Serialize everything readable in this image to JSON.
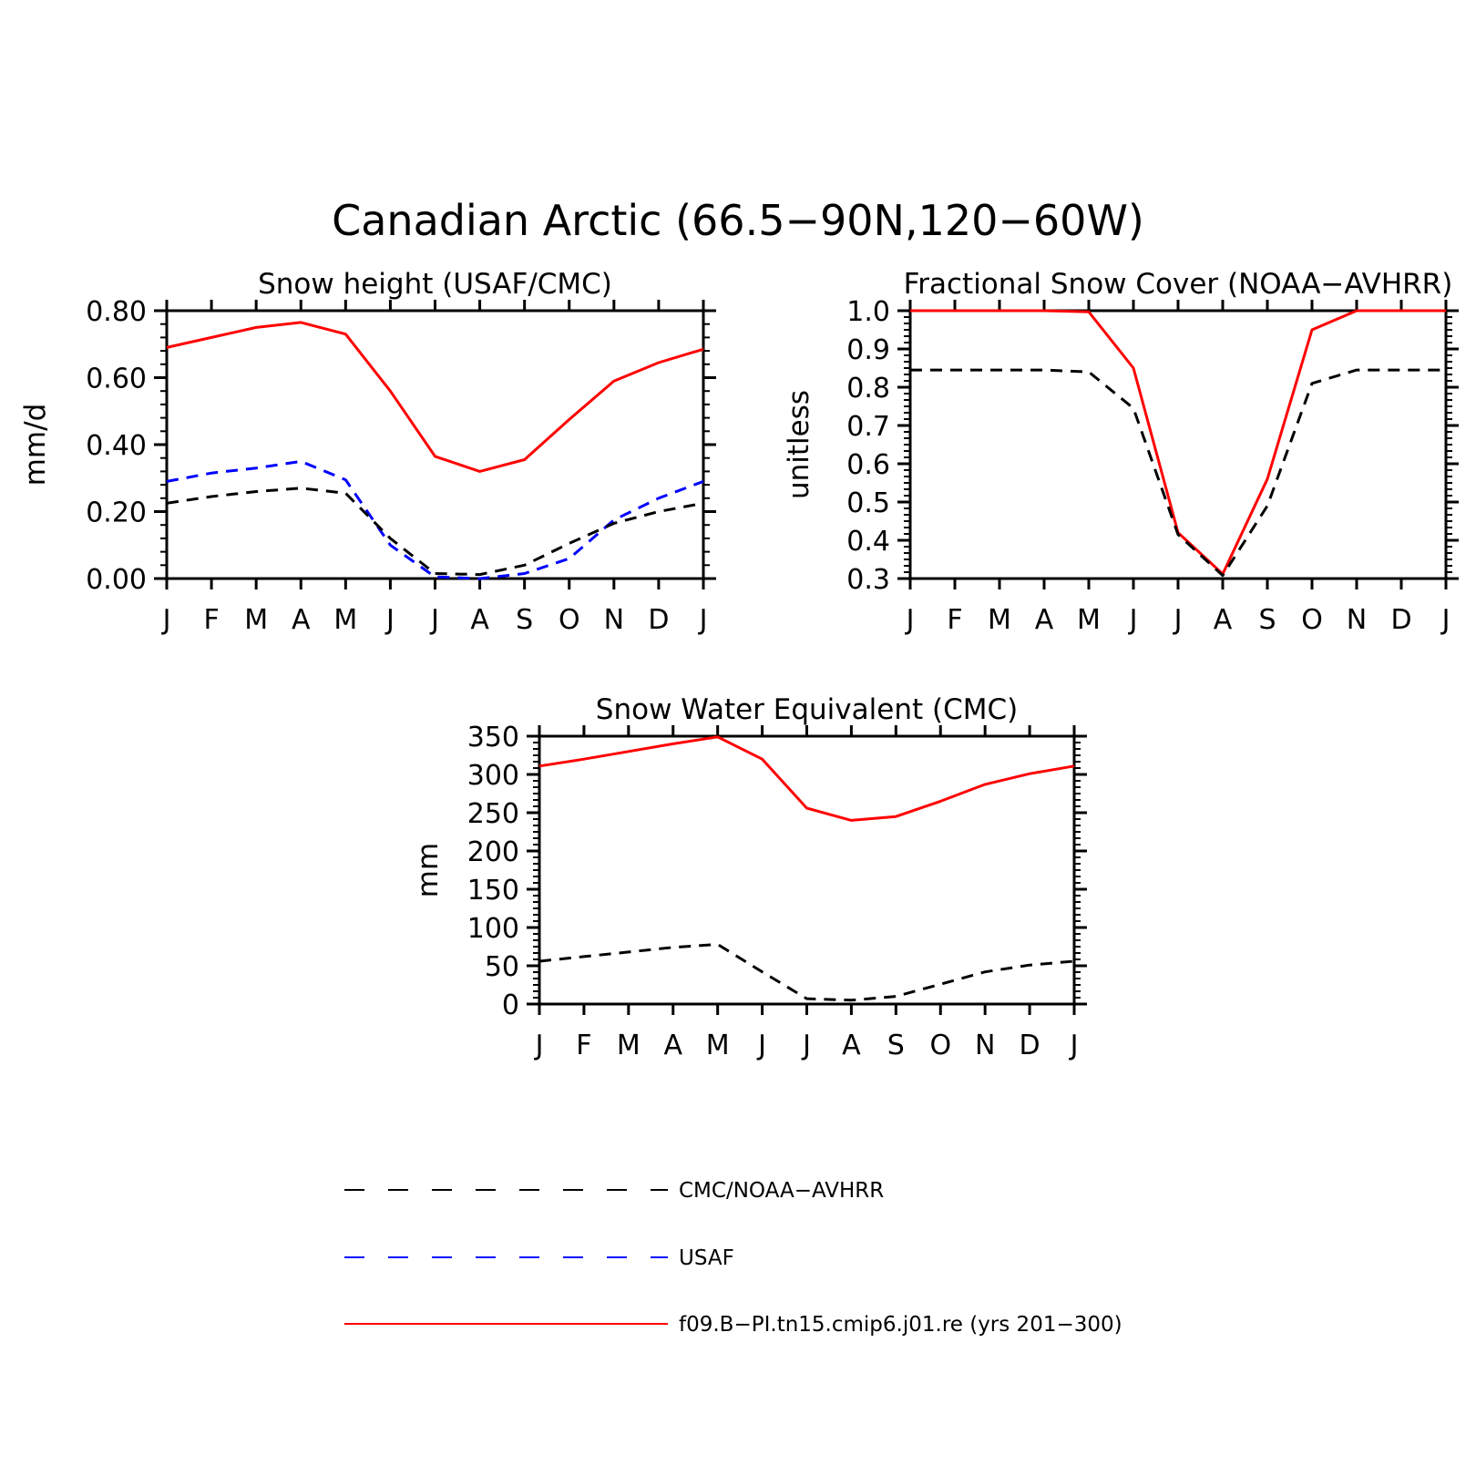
{
  "figure": {
    "title": "Canadian Arctic (66.5−90N,120−60W)"
  },
  "legend": [
    {
      "label": "CMC/NOAA−AVHRR",
      "color": "#000000",
      "dash": "long-dash"
    },
    {
      "label": "USAF",
      "color": "#0000ff",
      "dash": "long-dash"
    },
    {
      "label": "f09.B−PI.tn15.cmip6.j01.re (yrs 201−300)",
      "color": "#ff0000",
      "dash": "solid"
    }
  ],
  "chart_data": [
    {
      "id": "snow-height",
      "type": "line",
      "title": "Snow height (USAF/CMC)",
      "xlabel": "",
      "ylabel": "mm/d",
      "x": [
        "J",
        "F",
        "M",
        "A",
        "M",
        "J",
        "J",
        "A",
        "S",
        "O",
        "N",
        "D",
        "J"
      ],
      "ylim": [
        0,
        0.8
      ],
      "yticks": [
        "0.00",
        "0.20",
        "0.40",
        "0.60",
        "0.80"
      ],
      "ytick_values": [
        0,
        0.2,
        0.4,
        0.6,
        0.8
      ],
      "series": [
        {
          "color": "#ff0000",
          "dash": "solid",
          "values": [
            0.69,
            0.72,
            0.75,
            0.765,
            0.73,
            0.56,
            0.365,
            0.32,
            0.355,
            0.475,
            0.59,
            0.645,
            0.685
          ]
        },
        {
          "color": "#0000ff",
          "dash": "dashed",
          "values": [
            0.29,
            0.315,
            0.33,
            0.35,
            0.295,
            0.1,
            0.005,
            0.0,
            0.015,
            0.06,
            0.175,
            0.24,
            0.29
          ]
        },
        {
          "color": "#000000",
          "dash": "dashed",
          "values": [
            0.225,
            0.245,
            0.26,
            0.27,
            0.255,
            0.12,
            0.015,
            0.012,
            0.04,
            0.105,
            0.165,
            0.2,
            0.225
          ]
        }
      ]
    },
    {
      "id": "fractional-snow-cover",
      "type": "line",
      "title": "Fractional Snow Cover (NOAA−AVHRR)",
      "xlabel": "",
      "ylabel": "unitless",
      "x": [
        "J",
        "F",
        "M",
        "A",
        "M",
        "J",
        "J",
        "A",
        "S",
        "O",
        "N",
        "D",
        "J"
      ],
      "ylim": [
        0.3,
        1.0
      ],
      "yticks": [
        "0.3",
        "0.4",
        "0.5",
        "0.6",
        "0.7",
        "0.8",
        "0.9",
        "1.0"
      ],
      "ytick_values": [
        0.3,
        0.4,
        0.5,
        0.6,
        0.7,
        0.8,
        0.9,
        1.0
      ],
      "series": [
        {
          "color": "#ff0000",
          "dash": "solid",
          "values": [
            1.0,
            1.0,
            1.0,
            1.0,
            0.997,
            0.85,
            0.42,
            0.312,
            0.56,
            0.95,
            1.0,
            1.0,
            1.0
          ]
        },
        {
          "color": "#000000",
          "dash": "dashed",
          "values": [
            0.845,
            0.845,
            0.845,
            0.845,
            0.84,
            0.745,
            0.415,
            0.308,
            0.49,
            0.81,
            0.845,
            0.845,
            0.845
          ]
        }
      ]
    },
    {
      "id": "snow-water-equivalent",
      "type": "line",
      "title": "Snow Water Equivalent (CMC)",
      "xlabel": "",
      "ylabel": "mm",
      "x": [
        "J",
        "F",
        "M",
        "A",
        "M",
        "J",
        "J",
        "A",
        "S",
        "O",
        "N",
        "D",
        "J"
      ],
      "ylim": [
        0,
        350
      ],
      "yticks": [
        "0",
        "50",
        "100",
        "150",
        "200",
        "250",
        "300",
        "350"
      ],
      "ytick_values": [
        0,
        50,
        100,
        150,
        200,
        250,
        300,
        350
      ],
      "series": [
        {
          "color": "#ff0000",
          "dash": "solid",
          "values": [
            311,
            320,
            330,
            340,
            349,
            320,
            256,
            240,
            245,
            265,
            287,
            301,
            311
          ]
        },
        {
          "color": "#000000",
          "dash": "dashed",
          "values": [
            56,
            62,
            68,
            74,
            78,
            42,
            7,
            5,
            10,
            26,
            42,
            51,
            56
          ]
        }
      ]
    }
  ]
}
